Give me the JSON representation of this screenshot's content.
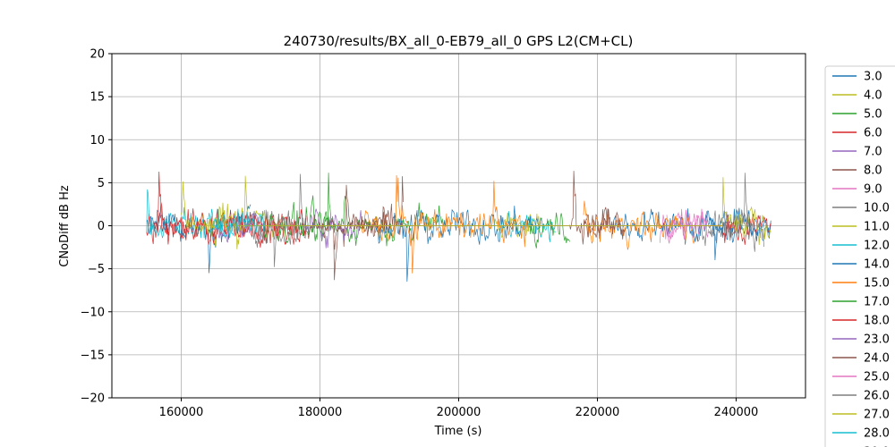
{
  "chart_data": {
    "type": "line",
    "title": "240730/results/BX_all_0-EB79_all_0 GPS L2(CM+CL)",
    "xlabel": "Time (s)",
    "ylabel": "CNoDiff dB Hz",
    "xlim": [
      150000,
      250000
    ],
    "ylim": [
      -20,
      20
    ],
    "xticks": [
      160000,
      180000,
      200000,
      220000,
      240000
    ],
    "xtick_labels": [
      "160000",
      "180000",
      "200000",
      "220000",
      "240000"
    ],
    "yticks": [
      -20,
      -15,
      -10,
      -5,
      0,
      5,
      10,
      15,
      20
    ],
    "ytick_labels": [
      "−20",
      "−15",
      "−10",
      "−5",
      "0",
      "5",
      "10",
      "15",
      "20"
    ],
    "grid": true,
    "legend_position": "right-outside",
    "series": [
      {
        "name": "3.0",
        "color": "#1f77b4",
        "segments": [
          [
            155000,
            170000
          ],
          [
            236000,
            245000
          ]
        ]
      },
      {
        "name": "4.0",
        "color": "#bcbd22",
        "segments": [
          [
            163000,
            175000
          ]
        ]
      },
      {
        "name": "5.0",
        "color": "#2ca02c",
        "segments": [
          [
            178000,
            198000
          ]
        ]
      },
      {
        "name": "6.0",
        "color": "#d62728",
        "segments": [
          [
            155000,
            178000
          ]
        ]
      },
      {
        "name": "7.0",
        "color": "#9467bd",
        "segments": [
          [
            165000,
            172000
          ]
        ]
      },
      {
        "name": "8.0",
        "color": "#8c564b",
        "segments": [
          [
            182000,
            192000
          ],
          [
            218000,
            222000
          ]
        ]
      },
      {
        "name": "9.0",
        "color": "#e377c2",
        "segments": [
          [
            229000,
            236000
          ]
        ]
      },
      {
        "name": "10.0",
        "color": "#7f7f7f",
        "segments": [
          [
            168000,
            178000
          ],
          [
            234000,
            242000
          ]
        ]
      },
      {
        "name": "11.0",
        "color": "#bcbd22",
        "segments": [
          [
            205000,
            212000
          ]
        ]
      },
      {
        "name": "12.0",
        "color": "#17becf",
        "segments": [
          [
            155000,
            168000
          ],
          [
            206000,
            214000
          ]
        ]
      },
      {
        "name": "14.0",
        "color": "#1f77b4",
        "segments": [
          [
            188000,
            212000
          ],
          [
            222000,
            245000
          ]
        ]
      },
      {
        "name": "15.0",
        "color": "#ff7f0e",
        "segments": [
          [
            186000,
            210000
          ],
          [
            218000,
            234000
          ]
        ]
      },
      {
        "name": "17.0",
        "color": "#2ca02c",
        "segments": [
          [
            172000,
            182000
          ],
          [
            210000,
            216000
          ]
        ]
      },
      {
        "name": "18.0",
        "color": "#d62728",
        "segments": [
          [
            156000,
            178000
          ],
          [
            238000,
            245000
          ]
        ]
      },
      {
        "name": "23.0",
        "color": "#9467bd",
        "segments": [
          [
            178000,
            186000
          ]
        ]
      },
      {
        "name": "24.0",
        "color": "#8c564b",
        "segments": [
          [
            178000,
            190000
          ],
          [
            216000,
            224000
          ]
        ]
      },
      {
        "name": "25.0",
        "color": "#e377c2",
        "segments": [
          [
            230000,
            236000
          ]
        ]
      },
      {
        "name": "26.0",
        "color": "#7f7f7f",
        "segments": [
          [
            170000,
            178000
          ],
          [
            236000,
            244000
          ]
        ]
      },
      {
        "name": "27.0",
        "color": "#bcbd22",
        "segments": [
          [
            160000,
            168000
          ],
          [
            238000,
            245000
          ]
        ]
      },
      {
        "name": "28.0",
        "color": "#17becf",
        "segments": [
          [
            164000,
            172000
          ]
        ]
      }
    ],
    "legend_partial_label": "30.0"
  }
}
